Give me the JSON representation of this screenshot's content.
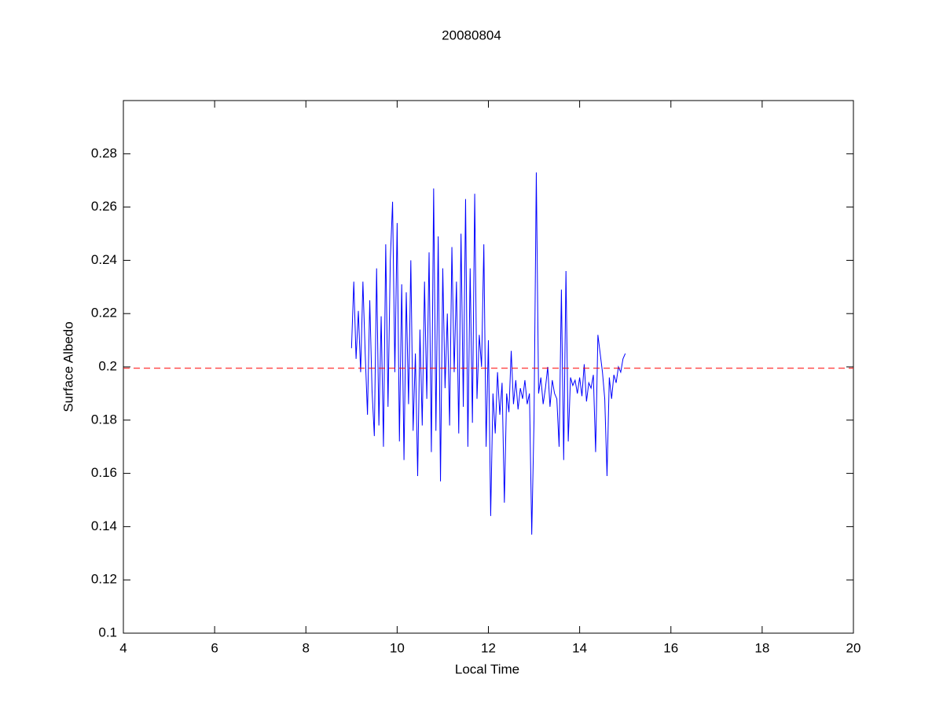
{
  "chart_data": {
    "type": "line",
    "title": "20080804",
    "xlabel": "Local Time",
    "ylabel": "Surface Albedo",
    "xlim": [
      4,
      20
    ],
    "xticks": [
      4,
      6,
      8,
      10,
      12,
      14,
      16,
      18,
      20
    ],
    "ylim": [
      0.1,
      0.3
    ],
    "yticks": [
      0.1,
      0.12,
      0.14,
      0.16,
      0.18,
      0.2,
      0.22,
      0.24,
      0.26,
      0.28
    ],
    "x": [
      9,
      9.05,
      9.1,
      9.15,
      9.2,
      9.25,
      9.3,
      9.35,
      9.4,
      9.45,
      9.5,
      9.55,
      9.6,
      9.65,
      9.7,
      9.75,
      9.8,
      9.85,
      9.9,
      9.95,
      10,
      10.05,
      10.1,
      10.15,
      10.2,
      10.25,
      10.3,
      10.35,
      10.4,
      10.45,
      10.5,
      10.55,
      10.6,
      10.65,
      10.7,
      10.75,
      10.8,
      10.85,
      10.9,
      10.95,
      11,
      11.05,
      11.1,
      11.15,
      11.2,
      11.25,
      11.3,
      11.35,
      11.4,
      11.45,
      11.5,
      11.55,
      11.6,
      11.65,
      11.7,
      11.75,
      11.8,
      11.85,
      11.9,
      11.95,
      12,
      12.05,
      12.1,
      12.15,
      12.2,
      12.25,
      12.3,
      12.35,
      12.4,
      12.45,
      12.5,
      12.55,
      12.6,
      12.65,
      12.7,
      12.75,
      12.8,
      12.85,
      12.9,
      12.95,
      13,
      13.05,
      13.1,
      13.15,
      13.2,
      13.25,
      13.3,
      13.35,
      13.4,
      13.45,
      13.5,
      13.55,
      13.6,
      13.65,
      13.7,
      13.75,
      13.8,
      13.85,
      13.9,
      13.95,
      14,
      14.05,
      14.1,
      14.15,
      14.2,
      14.25,
      14.3,
      14.35,
      14.4,
      14.45,
      14.5,
      14.55,
      14.6,
      14.65,
      14.7,
      14.75,
      14.8,
      14.85,
      14.9,
      14.95,
      15
    ],
    "series": [
      {
        "color": "#0000ff",
        "values": [
          0.207,
          0.232,
          0.203,
          0.221,
          0.198,
          0.232,
          0.205,
          0.182,
          0.225,
          0.191,
          0.174,
          0.237,
          0.178,
          0.219,
          0.17,
          0.246,
          0.185,
          0.24,
          0.262,
          0.198,
          0.254,
          0.172,
          0.231,
          0.165,
          0.228,
          0.186,
          0.24,
          0.176,
          0.205,
          0.159,
          0.214,
          0.178,
          0.232,
          0.188,
          0.243,
          0.168,
          0.267,
          0.176,
          0.249,
          0.157,
          0.237,
          0.192,
          0.22,
          0.178,
          0.245,
          0.198,
          0.232,
          0.175,
          0.25,
          0.185,
          0.263,
          0.17,
          0.237,
          0.179,
          0.265,
          0.188,
          0.212,
          0.2,
          0.246,
          0.17,
          0.21,
          0.144,
          0.19,
          0.175,
          0.198,
          0.182,
          0.194,
          0.149,
          0.19,
          0.183,
          0.206,
          0.186,
          0.195,
          0.184,
          0.192,
          0.188,
          0.195,
          0.186,
          0.19,
          0.137,
          0.18,
          0.273,
          0.19,
          0.196,
          0.186,
          0.192,
          0.2,
          0.185,
          0.195,
          0.19,
          0.188,
          0.17,
          0.229,
          0.165,
          0.236,
          0.172,
          0.196,
          0.193,
          0.195,
          0.19,
          0.196,
          0.189,
          0.201,
          0.187,
          0.194,
          0.192,
          0.197,
          0.168,
          0.212,
          0.205,
          0.198,
          0.188,
          0.159,
          0.196,
          0.188,
          0.197,
          0.194,
          0.2,
          0.198,
          0.203,
          0.205
        ]
      }
    ],
    "reference_line": {
      "value": 0.1995,
      "color": "#ff0000",
      "style": "dashed"
    }
  }
}
